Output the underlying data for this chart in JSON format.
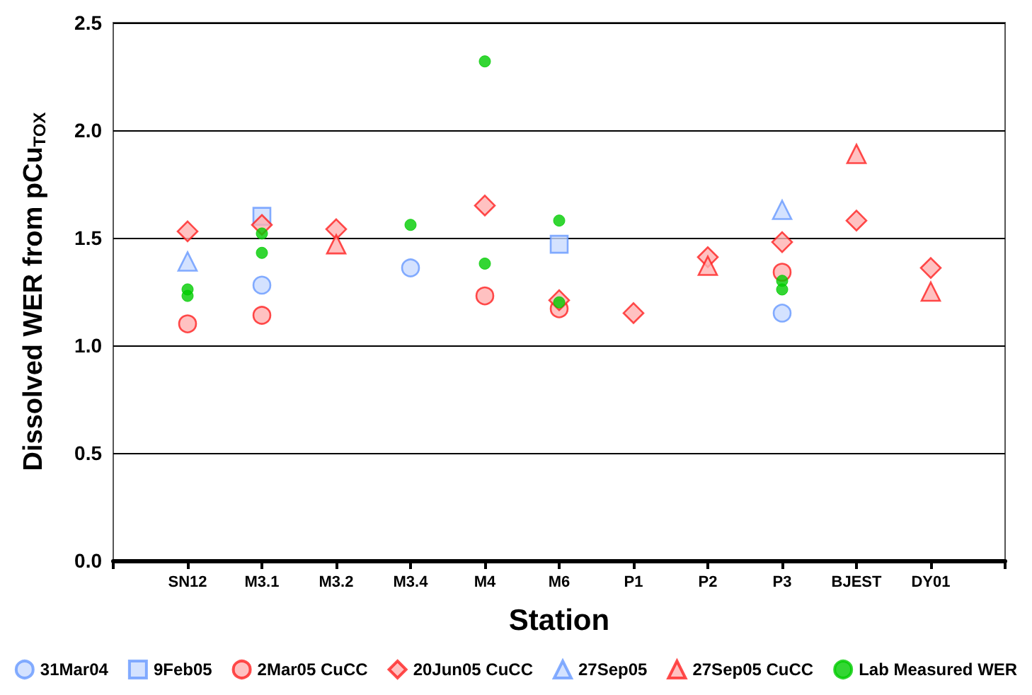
{
  "chart_data": {
    "type": "scatter",
    "xlabel": "Station",
    "ylabel": "Dissolved WER from pCu$_{TOX}$",
    "categories": [
      null,
      "SN12",
      "M3.1",
      "M3.2",
      "M3.4",
      "M4",
      "M6",
      "P1",
      "P2",
      "P3",
      "BJEST",
      "DY01",
      null
    ],
    "ylim": [
      0,
      2.5
    ],
    "yticks": [
      {
        "value": 0,
        "label": "0.0"
      },
      {
        "value": 0.5,
        "label": "0.5"
      },
      {
        "value": 1,
        "label": "1.0"
      },
      {
        "value": 1.5,
        "label": "1.5"
      },
      {
        "value": 2,
        "label": "2.0"
      },
      {
        "value": 2.5,
        "label": "2.5"
      }
    ],
    "grid": "y",
    "legend": "bottom",
    "series": [
      {
        "name": "31Mar04",
        "color": "#6699ff",
        "marker": "circle",
        "x": [
          "SN12",
          "M3.1",
          "M3.4",
          "P3"
        ],
        "values": [
          null,
          1.28,
          1.36,
          1.15
        ]
      },
      {
        "name": "9Feb05",
        "color": "#6699ff",
        "marker": "square",
        "x": [
          "M3.1",
          "M6"
        ],
        "values": [
          1.6,
          1.47
        ]
      },
      {
        "name": "2Mar05 CuCC",
        "color": "#ff2020",
        "marker": "circle",
        "x": [
          "SN12",
          "M3.1",
          "M4",
          "M6",
          "P3"
        ],
        "values": [
          1.1,
          1.14,
          1.23,
          1.17,
          1.34
        ]
      },
      {
        "name": "20Jun05 CuCC",
        "color": "#ff2020",
        "marker": "diamond",
        "x": [
          "SN12",
          "M3.1",
          "M3.2",
          "M4",
          "M6",
          "P1",
          "P2",
          "P3",
          "BJEST",
          "DY01"
        ],
        "values": [
          1.53,
          1.56,
          1.54,
          1.65,
          1.21,
          1.15,
          1.41,
          1.48,
          1.58,
          1.36
        ]
      },
      {
        "name": "27Sep05",
        "color": "#6699ff",
        "marker": "triangle",
        "x": [
          "SN12",
          "P3"
        ],
        "values": [
          1.39,
          1.63
        ]
      },
      {
        "name": "27Sep05 CuCC",
        "color": "#ff2020",
        "marker": "triangle",
        "x": [
          "M3.2",
          "P2",
          "BJEST",
          "DY01"
        ],
        "values": [
          1.47,
          1.37,
          1.89,
          1.25
        ]
      },
      {
        "name": "Lab Measured WER",
        "color": "#00cc00",
        "marker": "circle",
        "x": [
          "SN12",
          "SN12",
          "M3.1",
          "M3.1",
          "M3.4",
          "M4",
          "M4",
          "M6",
          "M6",
          "P3",
          "P3"
        ],
        "values": [
          1.26,
          1.23,
          1.52,
          1.43,
          1.56,
          2.32,
          1.38,
          1.58,
          1.2,
          1.3,
          1.26
        ]
      }
    ]
  }
}
